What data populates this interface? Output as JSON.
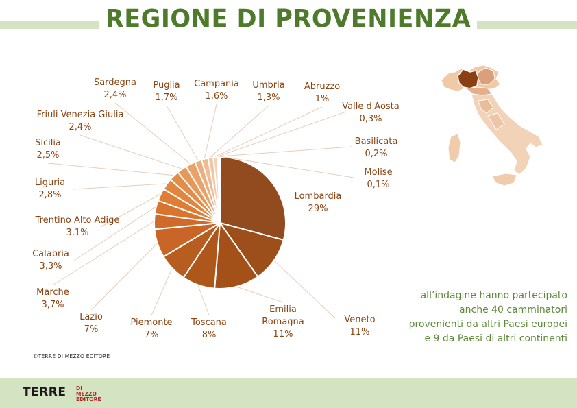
{
  "title": "REGIONE DI PROVENIENZA",
  "note": {
    "lines": [
      "all’indagine hanno partecipato",
      "anche 40 camminatori",
      "provenienti da altri Paesi europei",
      "e 9 da Paesi di altri continenti"
    ]
  },
  "copyright": "©TERRE DI MEZZO EDITORE",
  "logo": {
    "main": "TERRE",
    "sub1": "DI MEZZO",
    "sub2": "EDITORE"
  },
  "colors": {
    "title": "#4e7a2c",
    "label": "#8b4513",
    "band": "#d4e4c2",
    "note": "#5d8a3a",
    "logo_accent": "#b3261e"
  },
  "chart_data": {
    "type": "pie",
    "slices": [
      {
        "name": "Lombardia",
        "label": "29%",
        "value": 29,
        "color": "#924a1f"
      },
      {
        "name": "Veneto",
        "label": "11%",
        "value": 11,
        "color": "#9c4f1b"
      },
      {
        "name": "Emilia Romagna",
        "label": "11%",
        "value": 11,
        "color": "#a35119"
      },
      {
        "name": "Toscana",
        "label": "8%",
        "value": 8,
        "color": "#ad571b"
      },
      {
        "name": "Piemonte",
        "label": "7%",
        "value": 7,
        "color": "#b65d1f"
      },
      {
        "name": "Lazio",
        "label": "7%",
        "value": 7,
        "color": "#c96526"
      },
      {
        "name": "Marche",
        "label": "3,7%",
        "value": 3.7,
        "color": "#d06a2a"
      },
      {
        "name": "Calabria",
        "label": "3,3%",
        "value": 3.3,
        "color": "#d8742e"
      },
      {
        "name": "Trentino Alto Adige",
        "label": "3,1%",
        "value": 3.1,
        "color": "#de7d36"
      },
      {
        "name": "Liguria",
        "label": "2,8%",
        "value": 2.8,
        "color": "#e1853f"
      },
      {
        "name": "Sicilia",
        "label": "2,5%",
        "value": 2.5,
        "color": "#e48d4a"
      },
      {
        "name": "Friuli Venezia Giulia",
        "label": "2,4%",
        "value": 2.4,
        "color": "#e79757"
      },
      {
        "name": "Sardegna",
        "label": "2,4%",
        "value": 2.4,
        "color": "#eaa26a"
      },
      {
        "name": "Puglia",
        "label": "1,7%",
        "value": 1.7,
        "color": "#edae7e"
      },
      {
        "name": "Campania",
        "label": "1,6%",
        "value": 1.6,
        "color": "#f0ba92"
      },
      {
        "name": "Umbria",
        "label": "1,3%",
        "value": 1.3,
        "color": "#f2c6a5"
      },
      {
        "name": "Abruzzo",
        "label": "1%",
        "value": 1,
        "color": "#f4d0b5"
      },
      {
        "name": "Valle d'Aosta",
        "label": "0,3%",
        "value": 0.3,
        "color": "#f6d9c3"
      },
      {
        "name": "Basilicata",
        "label": "0,2%",
        "value": 0.2,
        "color": "#f7e0cf"
      },
      {
        "name": "Molise",
        "label": "0,1%",
        "value": 0.1,
        "color": "#f9e7da"
      }
    ]
  }
}
